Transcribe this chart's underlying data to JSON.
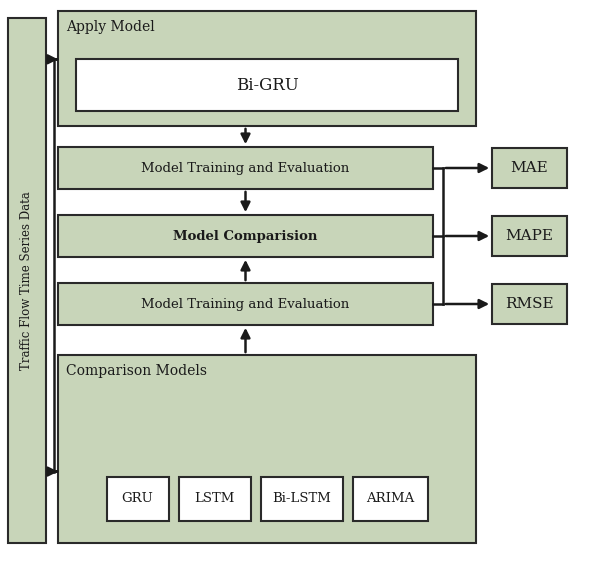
{
  "bg_color": "#ffffff",
  "lc": "#c8d5b9",
  "wc": "#ffffff",
  "ec": "#2a2a2a",
  "tc": "#1a1a1a",
  "ac": "#1a1a1a",
  "left_label": "Traffic Flow Time Series Data",
  "apply_model_label": "Apply Model",
  "bigru_label": "Bi-GRU",
  "train_eval_label": "Model Training and Evaluation",
  "comparison_label": "Model Comparision",
  "comp_models_label": "Comparison Models",
  "sub_models": [
    "GRU",
    "LSTM",
    "Bi-LSTM",
    "ARIMA"
  ],
  "metrics": [
    "MAE",
    "MAPE",
    "RMSE"
  ],
  "figw": 5.97,
  "figh": 5.61
}
